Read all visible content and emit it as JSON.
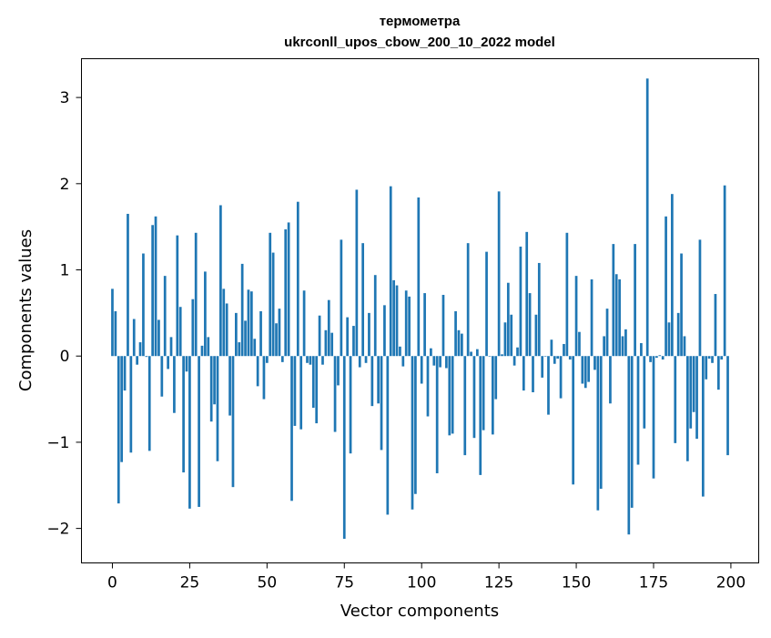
{
  "chart_data": {
    "type": "bar",
    "title_lines": [
      "термометра",
      "ukrconll_upos_cbow_200_10_2022 model"
    ],
    "xlabel": "Vector components",
    "ylabel": "Components values",
    "xlim": [
      -10,
      209
    ],
    "ylim": [
      -2.4,
      3.45
    ],
    "xticks": [
      0,
      25,
      50,
      75,
      100,
      125,
      150,
      175,
      200
    ],
    "xtick_labels": [
      "0",
      "25",
      "50",
      "75",
      "100",
      "125",
      "150",
      "175",
      "200"
    ],
    "yticks": [
      -2,
      -1,
      0,
      1,
      2,
      3
    ],
    "ytick_labels": [
      "−2",
      "−1",
      "0",
      "1",
      "2",
      "3"
    ],
    "grid": false,
    "bar_color": "#1f77b4",
    "x": [
      0,
      1,
      2,
      3,
      4,
      5,
      6,
      7,
      8,
      9,
      10,
      11,
      12,
      13,
      14,
      15,
      16,
      17,
      18,
      19,
      20,
      21,
      22,
      23,
      24,
      25,
      26,
      27,
      28,
      29,
      30,
      31,
      32,
      33,
      34,
      35,
      36,
      37,
      38,
      39,
      40,
      41,
      42,
      43,
      44,
      45,
      46,
      47,
      48,
      49,
      50,
      51,
      52,
      53,
      54,
      55,
      56,
      57,
      58,
      59,
      60,
      61,
      62,
      63,
      64,
      65,
      66,
      67,
      68,
      69,
      70,
      71,
      72,
      73,
      74,
      75,
      76,
      77,
      78,
      79,
      80,
      81,
      82,
      83,
      84,
      85,
      86,
      87,
      88,
      89,
      90,
      91,
      92,
      93,
      94,
      95,
      96,
      97,
      98,
      99,
      100,
      101,
      102,
      103,
      104,
      105,
      106,
      107,
      108,
      109,
      110,
      111,
      112,
      113,
      114,
      115,
      116,
      117,
      118,
      119,
      120,
      121,
      122,
      123,
      124,
      125,
      126,
      127,
      128,
      129,
      130,
      131,
      132,
      133,
      134,
      135,
      136,
      137,
      138,
      139,
      140,
      141,
      142,
      143,
      144,
      145,
      146,
      147,
      148,
      149,
      150,
      151,
      152,
      153,
      154,
      155,
      156,
      157,
      158,
      159,
      160,
      161,
      162,
      163,
      164,
      165,
      166,
      167,
      168,
      169,
      170,
      171,
      172,
      173,
      174,
      175,
      176,
      177,
      178,
      179,
      180,
      181,
      182,
      183,
      184,
      185,
      186,
      187,
      188,
      189,
      190,
      191,
      192,
      193,
      194,
      195,
      196,
      197,
      198,
      199
    ],
    "values": [
      0.78,
      0.52,
      -1.71,
      -1.23,
      -0.4,
      1.65,
      -1.12,
      0.43,
      -0.1,
      0.16,
      1.19,
      -0.01,
      -1.1,
      1.52,
      1.62,
      0.42,
      -0.47,
      0.93,
      -0.15,
      0.22,
      -0.66,
      1.4,
      0.57,
      -1.35,
      -0.18,
      -1.77,
      0.66,
      1.43,
      -1.75,
      0.12,
      0.98,
      0.22,
      -0.76,
      -0.56,
      -1.22,
      1.75,
      0.78,
      0.61,
      -0.69,
      -1.52,
      0.5,
      0.16,
      1.07,
      0.41,
      0.77,
      0.75,
      0.2,
      -0.35,
      0.52,
      -0.5,
      -0.08,
      1.43,
      1.2,
      0.38,
      0.55,
      -0.07,
      1.47,
      1.55,
      -1.68,
      -0.81,
      1.79,
      -0.85,
      0.76,
      -0.08,
      -0.1,
      -0.6,
      -0.78,
      0.47,
      -0.1,
      0.3,
      0.65,
      0.27,
      -0.88,
      -0.34,
      1.35,
      -2.12,
      0.45,
      -1.13,
      0.35,
      1.93,
      -0.13,
      1.31,
      -0.08,
      0.5,
      -0.58,
      0.94,
      -0.55,
      -1.09,
      0.59,
      -1.84,
      1.97,
      0.88,
      0.82,
      0.11,
      -0.12,
      0.76,
      0.69,
      -1.78,
      -1.6,
      1.84,
      -0.32,
      0.73,
      -0.7,
      0.09,
      -0.11,
      -1.36,
      -0.13,
      0.71,
      -0.14,
      -0.92,
      -0.9,
      0.52,
      0.3,
      0.26,
      -1.15,
      1.31,
      0.05,
      -0.95,
      0.08,
      -1.38,
      -0.86,
      1.21,
      0.0,
      -0.91,
      -0.5,
      1.91,
      0.02,
      0.39,
      0.85,
      0.48,
      -0.11,
      0.1,
      1.27,
      -0.4,
      1.44,
      0.73,
      -0.42,
      0.48,
      1.08,
      -0.25,
      0.0,
      -0.68,
      0.19,
      -0.09,
      -0.03,
      -0.49,
      0.14,
      1.43,
      -0.04,
      -1.49,
      0.93,
      0.28,
      -0.32,
      -0.37,
      -0.3,
      0.89,
      -0.16,
      -1.79,
      -1.54,
      0.23,
      0.55,
      -0.55,
      1.3,
      0.95,
      0.89,
      0.23,
      0.31,
      -2.07,
      -1.76,
      1.3,
      -1.26,
      0.15,
      -0.84,
      3.22,
      -0.07,
      -1.42,
      -0.02,
      0.01,
      -0.04,
      1.62,
      0.39,
      1.88,
      -1.01,
      0.5,
      1.19,
      0.23,
      -1.22,
      -0.84,
      -0.65,
      -0.96,
      1.35,
      -1.63,
      -0.27,
      -0.03,
      -0.08,
      0.72,
      -0.39,
      -0.04,
      1.98,
      -1.15
    ]
  }
}
